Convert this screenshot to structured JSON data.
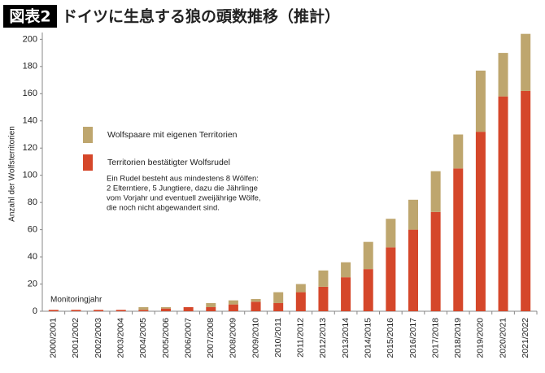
{
  "chart_data": {
    "type": "stacked_bar",
    "figure_label": "図表2",
    "title": "ドイツに生息する狼の頭数推移（推計）",
    "ylabel": "Anzahl der Wolfsterritorien",
    "xlabel": "Monitoringjahr",
    "note": [
      "Ein Rudel besteht aus mindestens 8 Wölfen:",
      "2 Elterntiere, 5 Jungtiere, dazu die Jährlinge",
      "vom Vorjahr und eventuell zweijährige Wölfe,",
      "die noch nicht abgewandert sind."
    ],
    "categories": [
      "2000/2001",
      "2001/2002",
      "2002/2003",
      "2003/2004",
      "2004/2005",
      "2005/2006",
      "2006/2007",
      "2007/2008",
      "2008/2009",
      "2009/2010",
      "2010/2011",
      "2011/2012",
      "2012/2013",
      "2013/2014",
      "2014/2015",
      "2015/2016",
      "2016/2017",
      "2017/2018",
      "2018/2019",
      "2019/2020",
      "2020/2021",
      "2021/2022"
    ],
    "series": [
      {
        "name": "Territorien bestätigter Wolfsrudel",
        "color": "#d5472a",
        "values": [
          1,
          1,
          1,
          1,
          1,
          2,
          3,
          3,
          5,
          7,
          6,
          14,
          18,
          25,
          31,
          47,
          60,
          73,
          105,
          132,
          158,
          162
        ]
      },
      {
        "name": "Wolfspaare mit eigenen Territorien",
        "color": "#bea66e",
        "values": [
          0,
          0,
          0,
          0,
          2,
          1,
          0,
          3,
          3,
          2,
          8,
          6,
          12,
          11,
          20,
          21,
          22,
          30,
          25,
          45,
          32,
          42
        ]
      }
    ],
    "legend_order": [
      1,
      0
    ],
    "ylim": [
      0,
      205
    ],
    "yticks": [
      0,
      20,
      40,
      60,
      80,
      100,
      120,
      140,
      160,
      180,
      200
    ],
    "grid": false
  }
}
